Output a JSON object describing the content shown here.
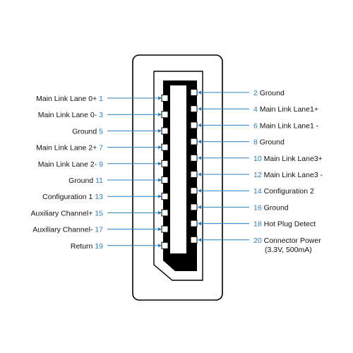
{
  "colors": {
    "line": "#2a7fc0",
    "number": "#2a7fc0",
    "text": "#111111",
    "connector": "#000000",
    "outline": "#000000"
  },
  "left_pins": [
    {
      "num": "1",
      "label": "Main Link Lane 0+"
    },
    {
      "num": "3",
      "label": "Main Link Lane 0-"
    },
    {
      "num": "5",
      "label": "Ground"
    },
    {
      "num": "7",
      "label": "Main Link Lane 2+"
    },
    {
      "num": "9",
      "label": "Main Link Lane 2-"
    },
    {
      "num": "11",
      "label": "Ground"
    },
    {
      "num": "13",
      "label": "Configuration 1"
    },
    {
      "num": "15",
      "label": "Auxiliary Channel+"
    },
    {
      "num": "17",
      "label": "Auxiliary Channel-"
    },
    {
      "num": "19",
      "label": "Return"
    }
  ],
  "right_pins": [
    {
      "num": "2",
      "label": "Ground"
    },
    {
      "num": "4",
      "label": "Main Link Lane1+"
    },
    {
      "num": "6",
      "label": "Main Link Lane1 -"
    },
    {
      "num": "8",
      "label": "Ground"
    },
    {
      "num": "10",
      "label": "Main Link Lane3+"
    },
    {
      "num": "12",
      "label": "Main Link Lane3 -"
    },
    {
      "num": "14",
      "label": "Configuration 2"
    },
    {
      "num": "16",
      "label": "Ground"
    },
    {
      "num": "18",
      "label": "Hot Plug Detect"
    },
    {
      "num": "20",
      "label": "Connector Power",
      "sublabel": "(3.3V, 500mA)"
    }
  ]
}
